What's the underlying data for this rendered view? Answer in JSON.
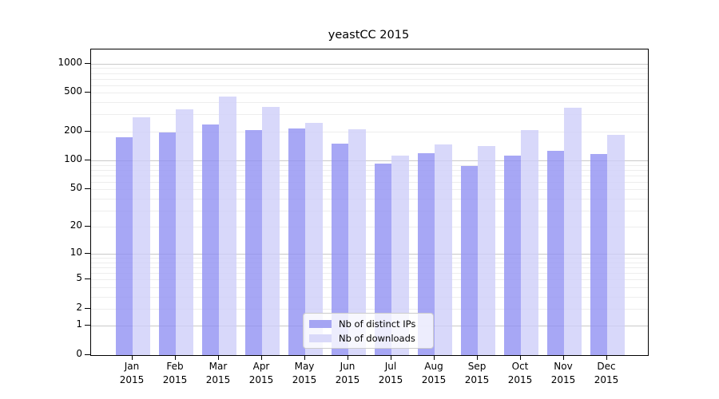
{
  "title": "yeastCC 2015",
  "colors": {
    "distinct_ips_bar": "rgba(145,145,242,0.8)",
    "downloads_bar": "rgba(206,206,249,0.8)",
    "distinct_ips_swatch": "#a5a5f3",
    "downloads_swatch": "#d9d9f9",
    "major_grid": "#c9c9c9",
    "minor_grid": "#ededed",
    "axis": "#000000"
  },
  "legend": {
    "items": [
      {
        "label": "Nb of distinct IPs",
        "color_key": "distinct_ips_swatch"
      },
      {
        "label": "Nb of downloads",
        "color_key": "downloads_swatch"
      }
    ]
  },
  "chart_data": {
    "type": "bar",
    "title": "yeastCC 2015",
    "categories": [
      "Jan 2015",
      "Feb 2015",
      "Mar 2015",
      "Apr 2015",
      "May 2015",
      "Jun 2015",
      "Jul 2015",
      "Aug 2015",
      "Sep 2015",
      "Oct 2015",
      "Nov 2015",
      "Dec 2015"
    ],
    "x_tick_lines": [
      {
        "month": "Jan",
        "year": "2015"
      },
      {
        "month": "Feb",
        "year": "2015"
      },
      {
        "month": "Mar",
        "year": "2015"
      },
      {
        "month": "Apr",
        "year": "2015"
      },
      {
        "month": "May",
        "year": "2015"
      },
      {
        "month": "Jun",
        "year": "2015"
      },
      {
        "month": "Jul",
        "year": "2015"
      },
      {
        "month": "Aug",
        "year": "2015"
      },
      {
        "month": "Sep",
        "year": "2015"
      },
      {
        "month": "Oct",
        "year": "2015"
      },
      {
        "month": "Nov",
        "year": "2015"
      },
      {
        "month": "Dec",
        "year": "2015"
      }
    ],
    "series": [
      {
        "name": "Nb of distinct IPs",
        "values": [
          175,
          195,
          235,
          205,
          215,
          150,
          93,
          118,
          88,
          113,
          125,
          116
        ]
      },
      {
        "name": "Nb of downloads",
        "values": [
          280,
          340,
          460,
          355,
          245,
          210,
          112,
          148,
          142,
          205,
          350,
          185
        ]
      }
    ],
    "xlabel": "",
    "ylabel": "",
    "y_scale": "log10(1+x)",
    "y_ticks": [
      0,
      1,
      2,
      5,
      10,
      20,
      50,
      100,
      200,
      500,
      1000
    ],
    "ylim": [
      0,
      1400
    ],
    "grid": "major and minor horizontal gridlines",
    "legend_position": "lower center"
  }
}
